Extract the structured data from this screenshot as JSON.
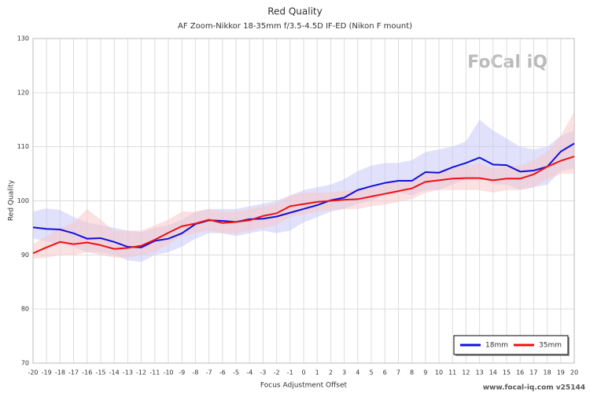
{
  "chart_data": {
    "type": "line",
    "title": "Red Quality",
    "subtitle": "AF Zoom-Nikkor 18-35mm f/3.5-4.5D IF-ED (Nikon F mount)",
    "xlabel": "Focus Adjustment Offset",
    "ylabel": "Red Quality",
    "logo": "FoCal iQ",
    "footer": "www.focal-iq.com  v25144",
    "x": [
      -20,
      -19,
      -18,
      -17,
      -16,
      -15,
      -14,
      -13,
      -12,
      -11,
      -10,
      -9,
      -8,
      -7,
      -6,
      -5,
      -4,
      -3,
      -2,
      -1,
      0,
      1,
      2,
      3,
      4,
      5,
      6,
      7,
      8,
      9,
      10,
      11,
      12,
      13,
      14,
      15,
      16,
      17,
      18,
      19,
      20
    ],
    "xlim": [
      -20,
      20
    ],
    "xticks": [
      -20,
      -19,
      -18,
      -17,
      -16,
      -15,
      -14,
      -13,
      -12,
      -11,
      -10,
      -9,
      -8,
      -7,
      -6,
      -5,
      -4,
      -3,
      -2,
      -1,
      0,
      1,
      2,
      3,
      4,
      5,
      6,
      7,
      8,
      9,
      10,
      11,
      12,
      13,
      14,
      15,
      16,
      17,
      18,
      19,
      20
    ],
    "ylim": [
      70,
      130
    ],
    "yticks": [
      70,
      80,
      90,
      100,
      110,
      120,
      130
    ],
    "grid": true,
    "legend": "lower right",
    "series": [
      {
        "name": "18mm",
        "color": "#1010dd",
        "band_color": "#c8c8f8",
        "values": [
          95.1,
          94.8,
          94.7,
          94.0,
          93.0,
          93.1,
          92.4,
          91.5,
          91.4,
          92.6,
          93.0,
          94.0,
          95.7,
          96.4,
          96.3,
          96.1,
          96.6,
          96.7,
          97.1,
          97.8,
          98.5,
          99.2,
          100.1,
          100.6,
          102.0,
          102.7,
          103.3,
          103.7,
          103.7,
          105.3,
          105.2,
          106.2,
          107.0,
          108.0,
          106.7,
          106.6,
          105.4,
          105.6,
          106.3,
          109.1,
          110.6
        ],
        "band_high": [
          98,
          98.6,
          98.3,
          97,
          96,
          95.5,
          95,
          94.5,
          94.2,
          95,
          95.5,
          96.5,
          98,
          98.5,
          98.5,
          98.5,
          99,
          99.5,
          100,
          101,
          102,
          102.5,
          103,
          104,
          105.5,
          106.5,
          107,
          107,
          107.5,
          109,
          109.5,
          110,
          111,
          115,
          113,
          111.5,
          110,
          109.5,
          110,
          112,
          113
        ],
        "band_low": [
          93,
          92.5,
          92,
          91.5,
          90.5,
          90.5,
          90,
          89,
          88.7,
          90,
          90.5,
          91.5,
          93,
          94,
          94,
          93.5,
          94,
          94.5,
          94,
          94.5,
          96,
          97,
          98,
          98.5,
          99.5,
          100,
          101,
          101.5,
          101,
          102,
          102,
          103,
          104,
          104.5,
          103,
          103,
          102,
          102.5,
          103,
          105.5,
          106
        ]
      },
      {
        "name": "35mm",
        "color": "#ee1111",
        "band_color": "#f8c8c8",
        "values": [
          90.3,
          91.4,
          92.4,
          92.0,
          92.3,
          91.8,
          91.1,
          91.3,
          91.7,
          92.8,
          94.1,
          95.3,
          95.8,
          96.5,
          95.9,
          96.1,
          96.4,
          97.2,
          97.7,
          99.0,
          99.4,
          99.8,
          100.0,
          100.2,
          100.3,
          100.8,
          101.3,
          101.8,
          102.3,
          103.5,
          103.8,
          104.1,
          104.2,
          104.2,
          103.8,
          104.1,
          104.1,
          104.9,
          106.3,
          107.4,
          108.2
        ],
        "band_high": [
          92,
          93.5,
          95,
          96,
          98.5,
          96.5,
          94.5,
          94.5,
          94.5,
          95.5,
          96.5,
          98,
          98,
          98.5,
          98,
          98,
          98.5,
          99,
          99.5,
          101,
          101.5,
          101.5,
          101.5,
          101.8,
          102,
          102.5,
          103,
          103.5,
          104,
          105,
          105.5,
          106,
          106.5,
          107,
          106,
          106.5,
          106.5,
          107.5,
          109,
          112,
          116.5
        ],
        "band_low": [
          89.3,
          89.5,
          90,
          90,
          90.5,
          90,
          89.5,
          89.5,
          90,
          90.5,
          92,
          93.5,
          94,
          94.5,
          94,
          94,
          94.5,
          95,
          95.5,
          97,
          97.5,
          98,
          98.3,
          98.5,
          98.5,
          99,
          99.3,
          99.8,
          100.3,
          101.5,
          102,
          102,
          102,
          102,
          101.5,
          102,
          102,
          102.5,
          104,
          105,
          105
        ]
      }
    ]
  }
}
